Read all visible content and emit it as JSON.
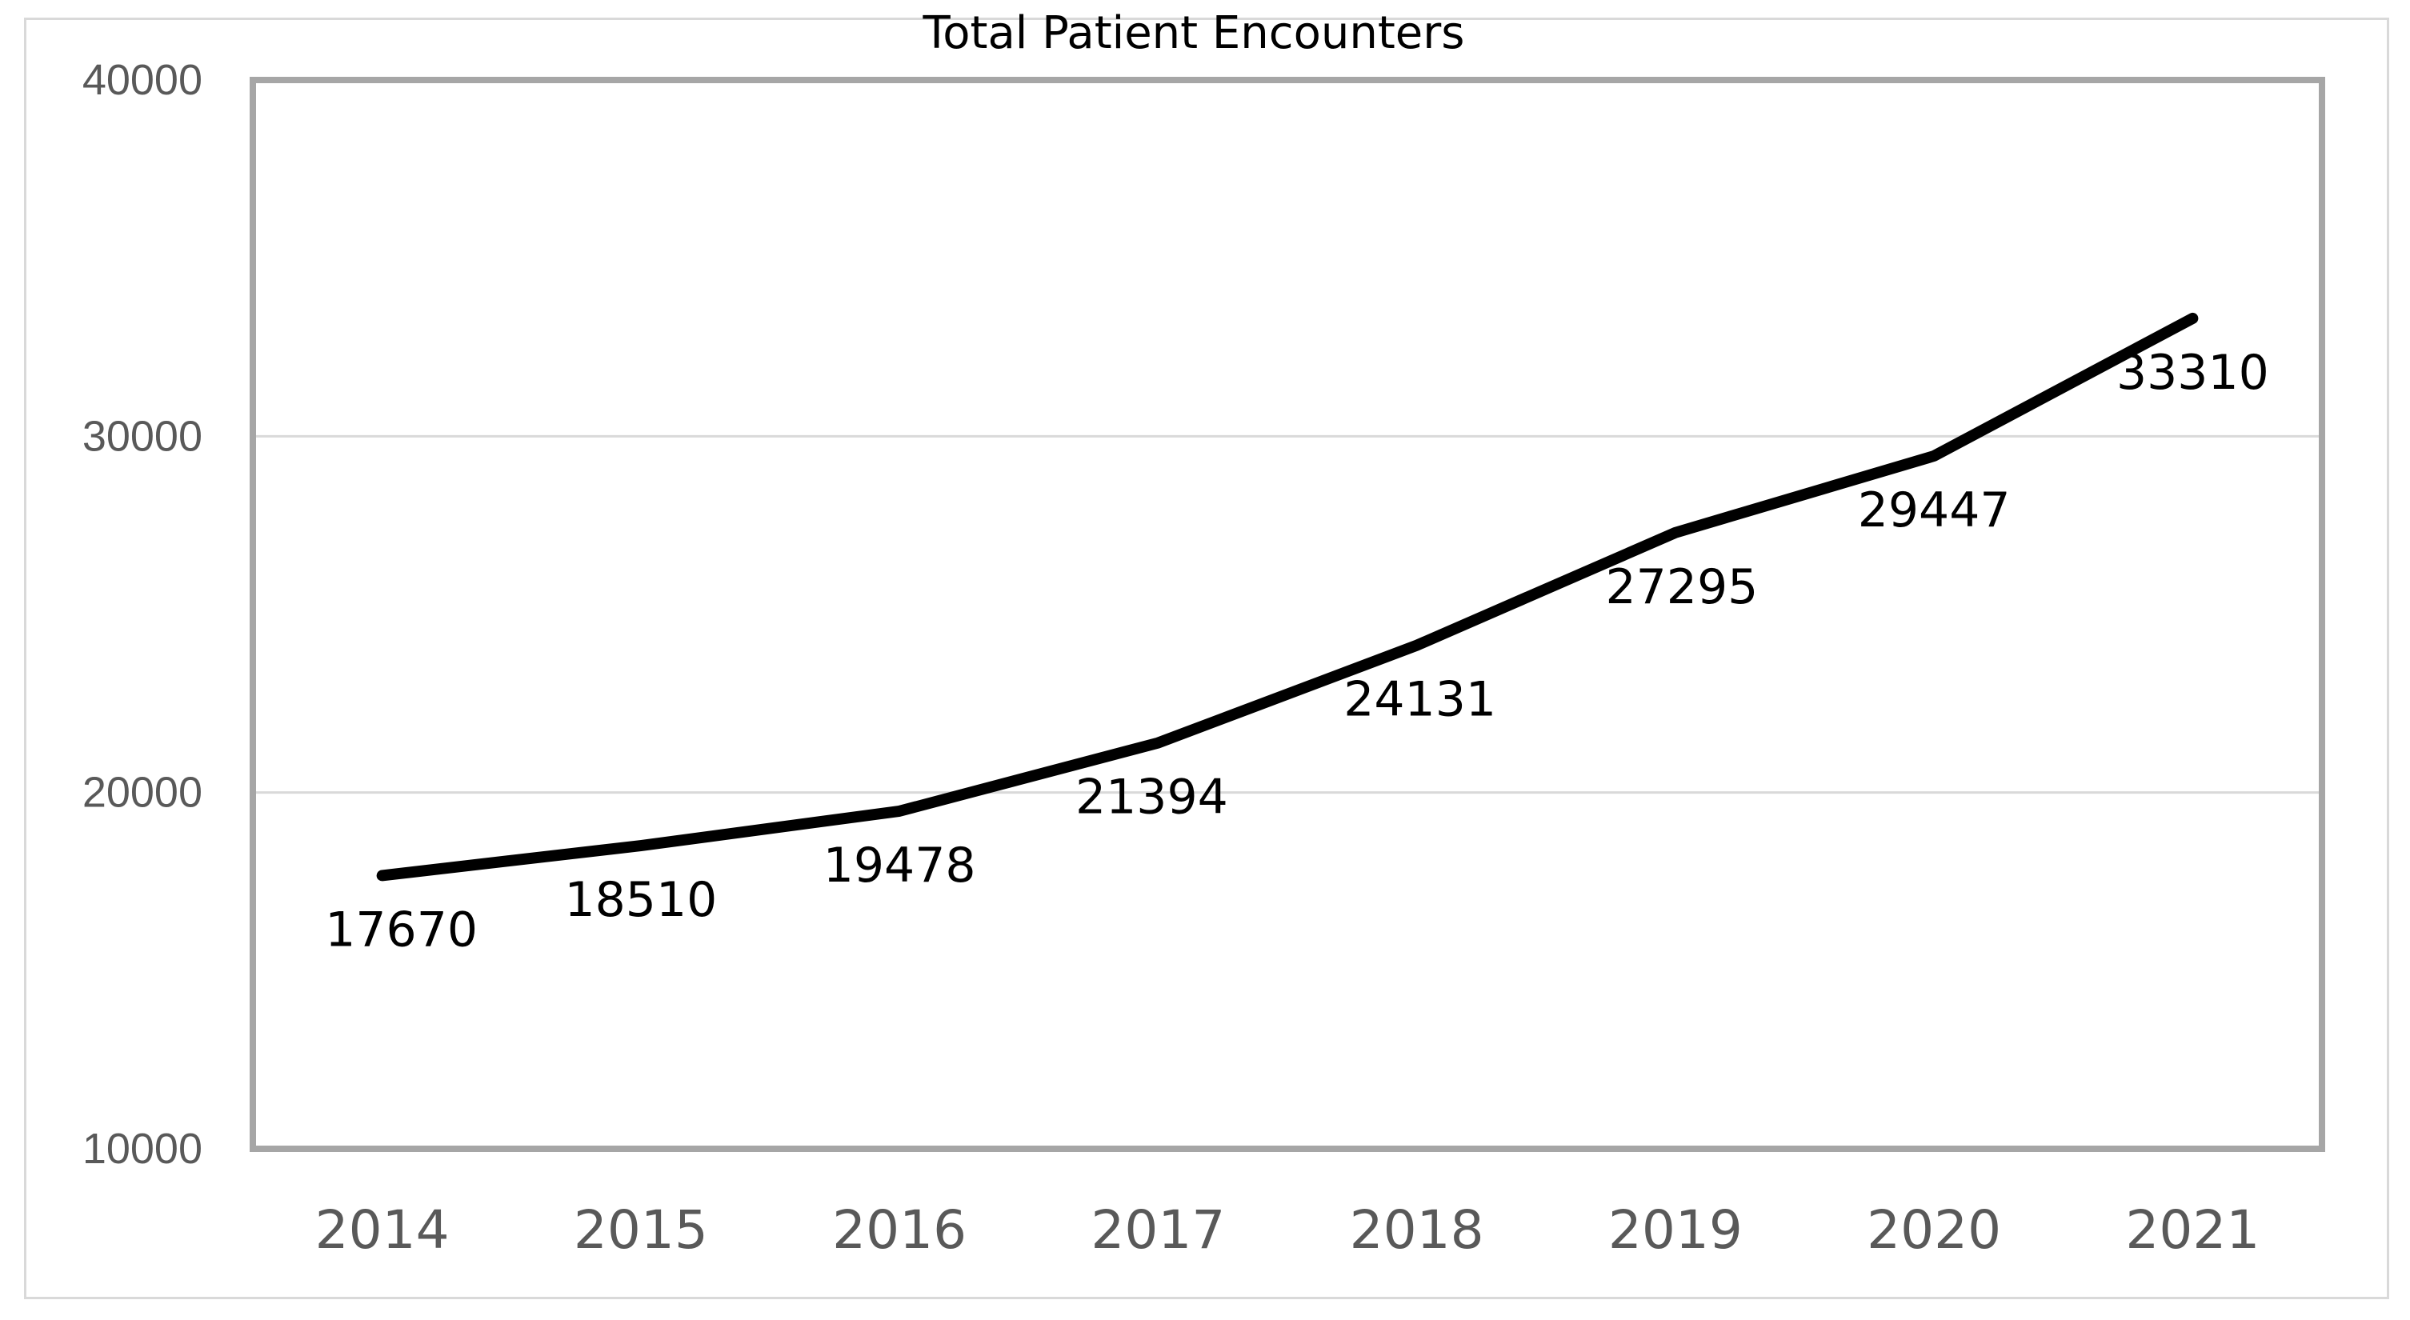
{
  "chart_data": {
    "type": "line",
    "title": "Total Patient Encounters",
    "xlabel": "",
    "ylabel": "",
    "categories": [
      "2014",
      "2015",
      "2016",
      "2017",
      "2018",
      "2019",
      "2020",
      "2021"
    ],
    "series": [
      {
        "values": [
          17670,
          18510,
          19478,
          21394,
          24131,
          27295,
          29447,
          33310
        ],
        "data_labels": [
          "17670",
          "18510",
          "19478",
          "21394",
          "24131",
          "27295",
          "29447",
          "33310"
        ],
        "color": "#000000"
      }
    ],
    "ylim": [
      10000,
      40000
    ],
    "yticks": [
      "10000",
      "20000",
      "30000",
      "40000"
    ],
    "grid": true,
    "legend": "none",
    "colors": {
      "gridline": "#d9d9d9",
      "plot_border": "#a6a6a6",
      "tick_text": "#595959",
      "frame_border": "#d9d9d9"
    }
  }
}
